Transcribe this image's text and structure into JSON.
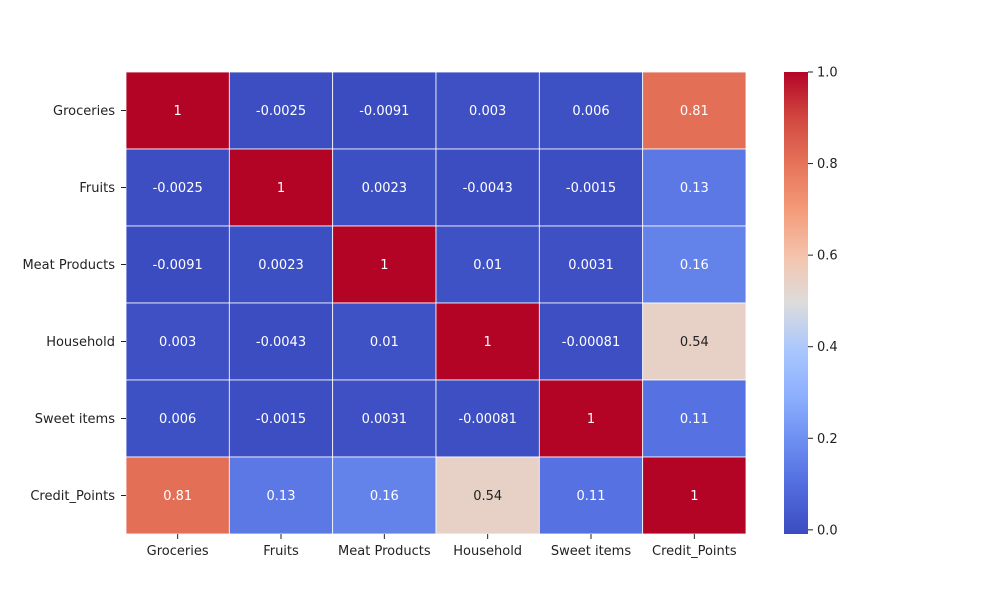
{
  "chart_data": {
    "type": "heatmap",
    "title": "",
    "xlabel": "",
    "ylabel": "",
    "x_categories": [
      "Groceries",
      "Fruits",
      "Meat Products",
      "Household",
      "Sweet items",
      "Credit_Points"
    ],
    "y_categories": [
      "Groceries",
      "Fruits",
      "Meat Products",
      "Household",
      "Sweet items",
      "Credit_Points"
    ],
    "values": [
      [
        1,
        -0.0025,
        -0.0091,
        0.003,
        0.006,
        0.81
      ],
      [
        -0.0025,
        1,
        0.0023,
        -0.0043,
        -0.0015,
        0.13
      ],
      [
        -0.0091,
        0.0023,
        1,
        0.01,
        0.0031,
        0.16
      ],
      [
        0.003,
        -0.0043,
        0.01,
        1,
        -0.00081,
        0.54
      ],
      [
        0.006,
        -0.0015,
        0.0031,
        -0.00081,
        1,
        0.11
      ],
      [
        0.81,
        0.13,
        0.16,
        0.54,
        0.11,
        1
      ]
    ],
    "annotations": [
      [
        "1",
        "-0.0025",
        "-0.0091",
        "0.003",
        "0.006",
        "0.81"
      ],
      [
        "-0.0025",
        "1",
        "0.0023",
        "-0.0043",
        "-0.0015",
        "0.13"
      ],
      [
        "-0.0091",
        "0.0023",
        "1",
        "0.01",
        "0.0031",
        "0.16"
      ],
      [
        "0.003",
        "-0.0043",
        "0.01",
        "1",
        "-0.00081",
        "0.54"
      ],
      [
        "0.006",
        "-0.0015",
        "0.0031",
        "-0.00081",
        "1",
        "0.11"
      ],
      [
        "0.81",
        "0.13",
        "0.16",
        "0.54",
        "0.11",
        "1"
      ]
    ],
    "colormap": "coolwarm",
    "colorbar": {
      "vmin": -0.0091,
      "vmax": 1,
      "ticks": [
        0.0,
        0.2,
        0.4,
        0.6,
        0.8,
        1.0
      ],
      "tick_labels": [
        "0.0",
        "0.2",
        "0.4",
        "0.6",
        "0.8",
        "1.0"
      ],
      "placement": "right"
    },
    "gridlines": "white",
    "colors": {
      "cold": "#3b4cc0",
      "neutral": "#dddcdc",
      "warm": "#b40426",
      "grid": "#ffffff",
      "text": "#222222"
    }
  }
}
